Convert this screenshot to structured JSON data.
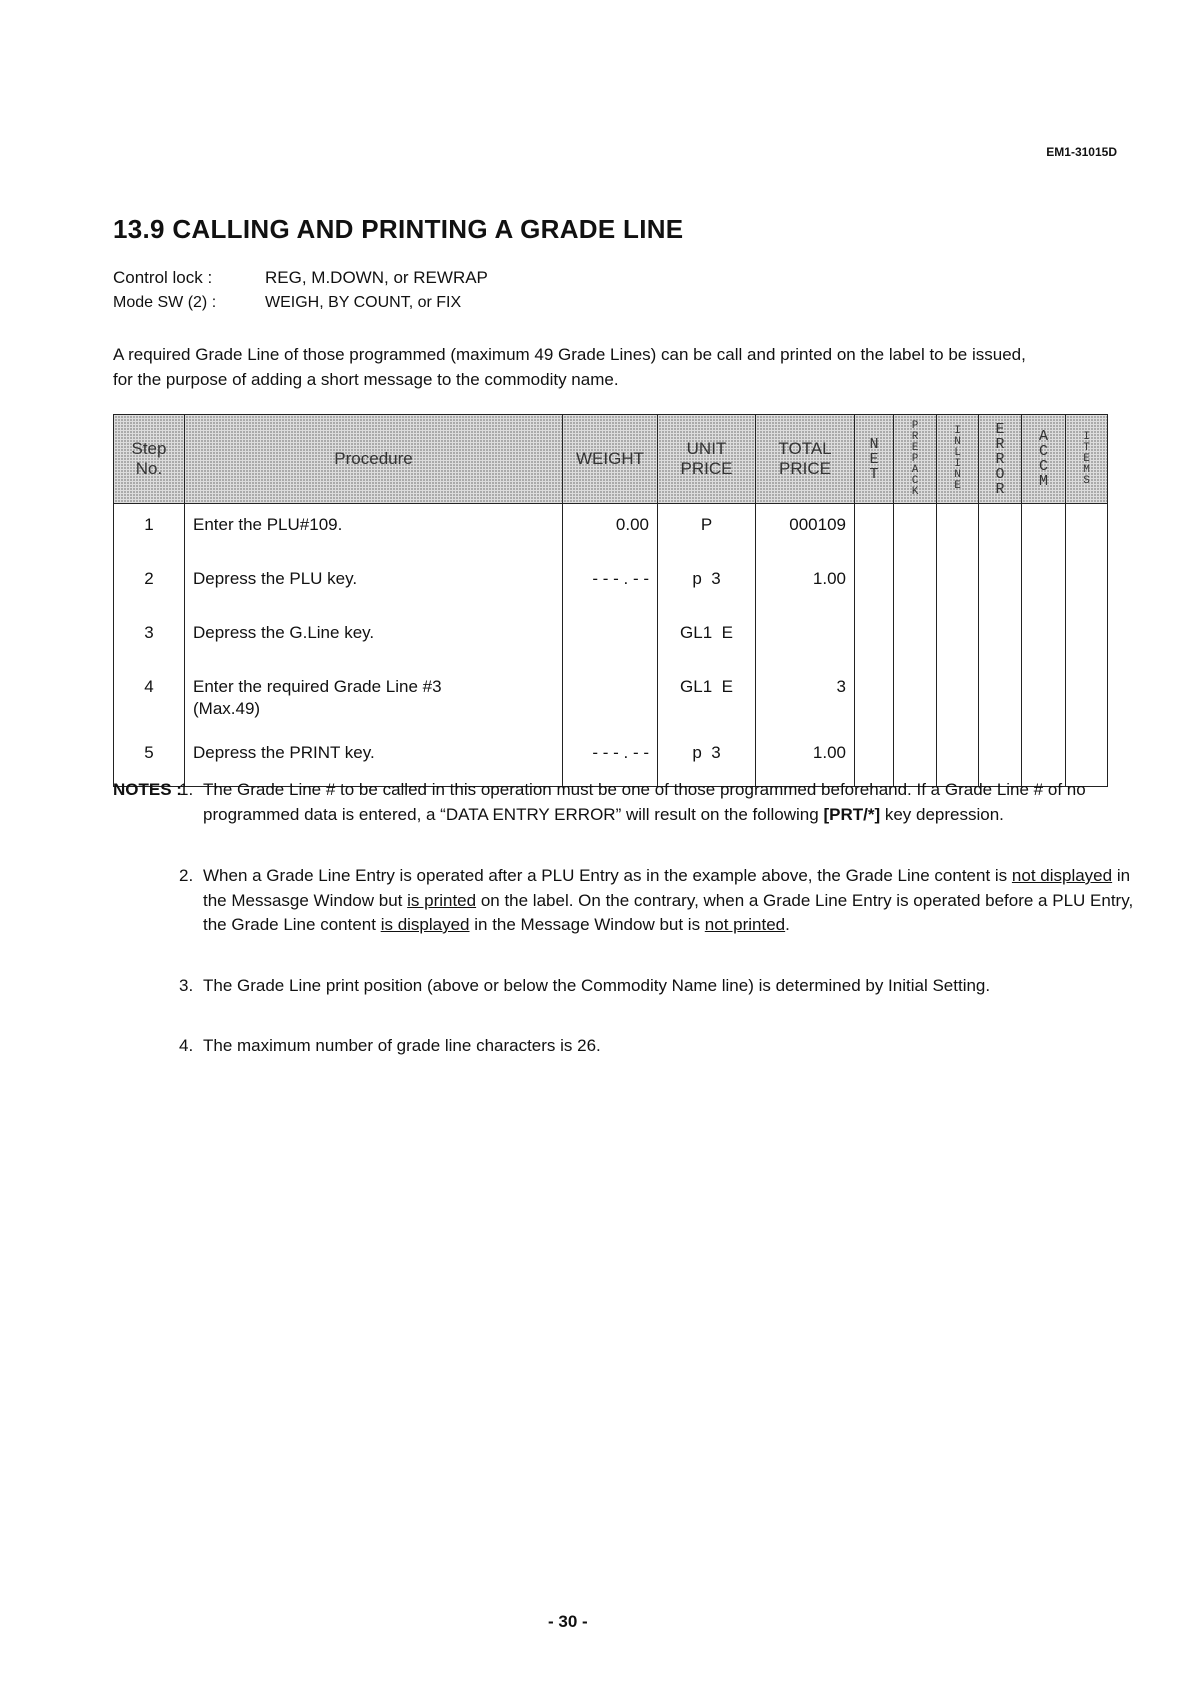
{
  "header": {
    "doc_id": "EM1-31015D",
    "title": "13.9 CALLING AND PRINTING A GRADE LINE"
  },
  "control_lock": {
    "label": "Control lock :",
    "value": "REG, M.DOWN, or REWRAP"
  },
  "mode_sw": {
    "label": "Mode SW (2) :",
    "value": "WEIGH, BY COUNT, or FIX"
  },
  "intro": "A required Grade Line of those programmed (maximum 49 Grade Lines) can be call and printed on the label to be issued, for the purpose of adding a short message to the commodity name.",
  "table": {
    "headers": {
      "step": [
        "Step",
        "No."
      ],
      "procedure": "Procedure",
      "weight": "WEIGHT",
      "unit_price": [
        "UNIT",
        "PRICE"
      ],
      "total_price": [
        "TOTAL",
        "PRICE"
      ],
      "net": "NET",
      "prepack": "PREPACK",
      "inline": "INLINE",
      "error": "ERROR",
      "accm": "ACCM",
      "items": "ITEMS"
    },
    "rows": [
      {
        "step": "1",
        "procedure": "Enter the PLU#109.",
        "procedure2": "",
        "weight": "0.00",
        "unit_price": "P",
        "total_price": "000109"
      },
      {
        "step": "2",
        "procedure": "Depress the PLU key.",
        "procedure2": "",
        "weight": "- - - . - -",
        "unit_price": "p  3",
        "total_price": "1.00"
      },
      {
        "step": "3",
        "procedure": "Depress the G.Line key.",
        "procedure2": "",
        "weight": "",
        "unit_price": "GL1  E",
        "total_price": ""
      },
      {
        "step": "4",
        "procedure": "Enter the required Grade Line #3",
        "procedure2": "(Max.49)",
        "weight": "",
        "unit_price": "GL1  E",
        "total_price": "3"
      },
      {
        "step": "5",
        "procedure": "Depress the PRINT key.",
        "procedure2": "",
        "weight": "- - - . - -",
        "unit_price": "p  3",
        "total_price": "1.00"
      }
    ]
  },
  "notes": {
    "label": "NOTES :",
    "items": [
      {
        "num": "1.",
        "parts": [
          "The Grade Line # to be called in this operation must be one of those programmed beforehand.   If a Grade Line # of no programmed data is entered, a “DATA ENTRY ERROR” will result on the following ",
          "[PRT/*]",
          " key depression."
        ]
      },
      {
        "num": "2.",
        "parts": [
          "When a Grade Line Entry is operated after a PLU Entry as in the example above, the Grade Line content is ",
          "not displayed",
          " in the Messasge Window but ",
          "is printed",
          " on the label. On the contrary, when a Grade Line Entry is operated before a PLU Entry, the Grade Line content ",
          "is displayed",
          " in the Message Window but is ",
          "not printed",
          "."
        ]
      },
      {
        "num": "3.",
        "text": "The Grade Line print position (above or below the Commodity Name line) is determined by Initial Setting."
      },
      {
        "num": "4.",
        "text": "The maximum number of grade line characters is 26."
      }
    ]
  },
  "page_number": "- 30 -"
}
